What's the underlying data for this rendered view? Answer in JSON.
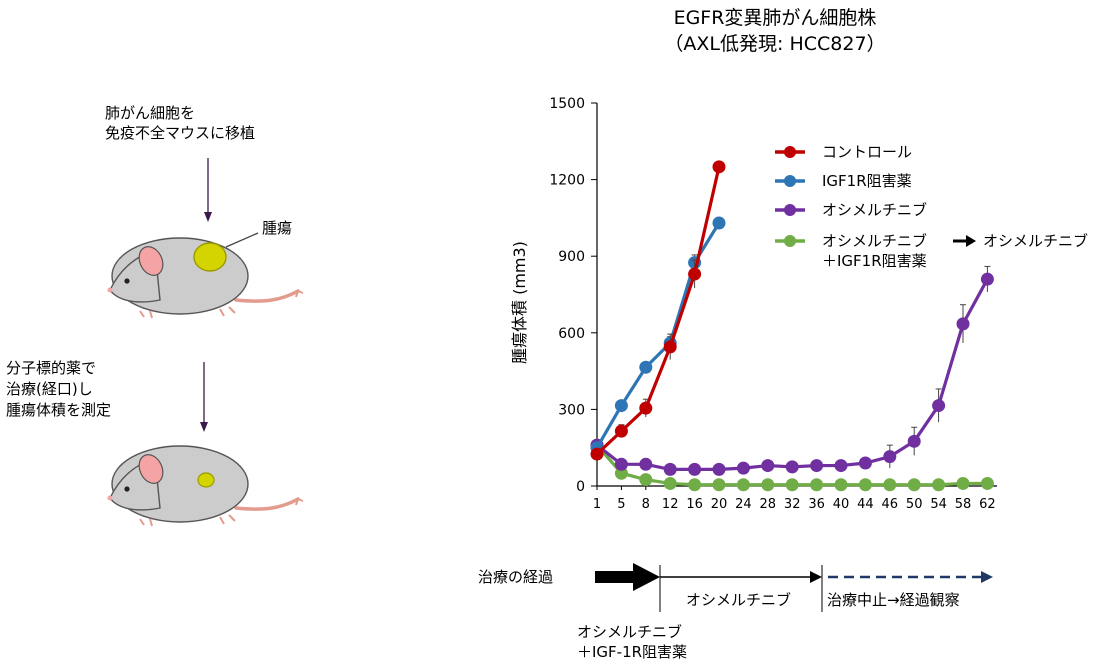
{
  "title_line1": "EGFR変異肺がん細胞株",
  "title_line2": "（AXL低発現: HCC827）",
  "left_panel": {
    "step1_line1": "肺がん細胞を",
    "step1_line2": "免疫不全マウスに移植",
    "tumor_label": "腫瘍",
    "step2_line1": "分子標的薬で",
    "step2_line2": "治療(経口)し",
    "step2_line3": "腫瘍体積を測定"
  },
  "legend": {
    "item1": "コントロール",
    "item2": "IGF1R阻害薬",
    "item3": "オシメルチニブ",
    "item4_line1": "オシメルチニブ",
    "item4_line2": "＋IGF1R阻害薬",
    "switch_label": "オシメルチニブ"
  },
  "timeline": {
    "label": "治療の経過",
    "phase2": "オシメルチニブ",
    "phase3": "治療中止→経過観察",
    "phase1_line1": "オシメルチニブ",
    "phase1_line2": "＋IGF-1R阻害薬"
  },
  "colors": {
    "control": "#c00000",
    "igf1r": "#2e75b6",
    "osimertinib": "#7030a0",
    "combo": "#70ad47",
    "mouse_body": "#cccccc",
    "tumor": "#d4d400",
    "timeline_dashed": "#1f3864"
  },
  "chart_data": {
    "type": "line",
    "title": "EGFR変異肺がん細胞株 （AXL低発現: HCC827）",
    "xlabel": "",
    "ylabel": "腫瘍体積 (mm3)",
    "ylim": [
      0,
      1500
    ],
    "yticks": [
      "0",
      "300",
      "600",
      "900",
      "1200",
      "1500"
    ],
    "xticks": [
      "1",
      "5",
      "8",
      "12",
      "16",
      "20",
      "24",
      "28",
      "32",
      "36",
      "40",
      "44",
      "46",
      "50",
      "54",
      "58",
      "62"
    ],
    "grid": false,
    "legend_position": "top-right",
    "series": [
      {
        "name": "コントロール",
        "color": "#c00000",
        "x": [
          1,
          5,
          8,
          12,
          16,
          20
        ],
        "y": [
          125,
          215,
          305,
          545,
          830,
          1250
        ],
        "err": [
          15,
          25,
          35,
          50,
          55,
          20
        ]
      },
      {
        "name": "IGF1R阻害薬",
        "color": "#2e75b6",
        "x": [
          1,
          5,
          8,
          12,
          16,
          20
        ],
        "y": [
          150,
          315,
          465,
          560,
          875,
          1030
        ],
        "err": [
          15,
          20,
          20,
          25,
          30,
          20
        ]
      },
      {
        "name": "オシメルチニブ",
        "color": "#7030a0",
        "x": [
          1,
          5,
          8,
          12,
          16,
          20,
          24,
          28,
          32,
          36,
          40,
          44,
          46,
          50,
          54,
          58,
          62
        ],
        "y": [
          160,
          85,
          85,
          65,
          65,
          65,
          70,
          80,
          75,
          80,
          80,
          90,
          115,
          175,
          315,
          635,
          810
        ],
        "err": [
          10,
          10,
          10,
          10,
          10,
          10,
          10,
          10,
          10,
          10,
          10,
          15,
          45,
          55,
          65,
          75,
          50
        ]
      },
      {
        "name": "オシメルチニブ ＋IGF1R阻害薬",
        "color": "#70ad47",
        "x": [
          1,
          5,
          8,
          12,
          16,
          20,
          24,
          28,
          32,
          36,
          40,
          44,
          46,
          50,
          54,
          58,
          62
        ],
        "y": [
          160,
          50,
          25,
          10,
          5,
          5,
          5,
          5,
          5,
          5,
          5,
          5,
          5,
          5,
          5,
          10,
          10
        ],
        "err": [
          10,
          8,
          5,
          5,
          3,
          3,
          3,
          3,
          3,
          3,
          3,
          3,
          3,
          3,
          3,
          3,
          3
        ]
      }
    ]
  }
}
